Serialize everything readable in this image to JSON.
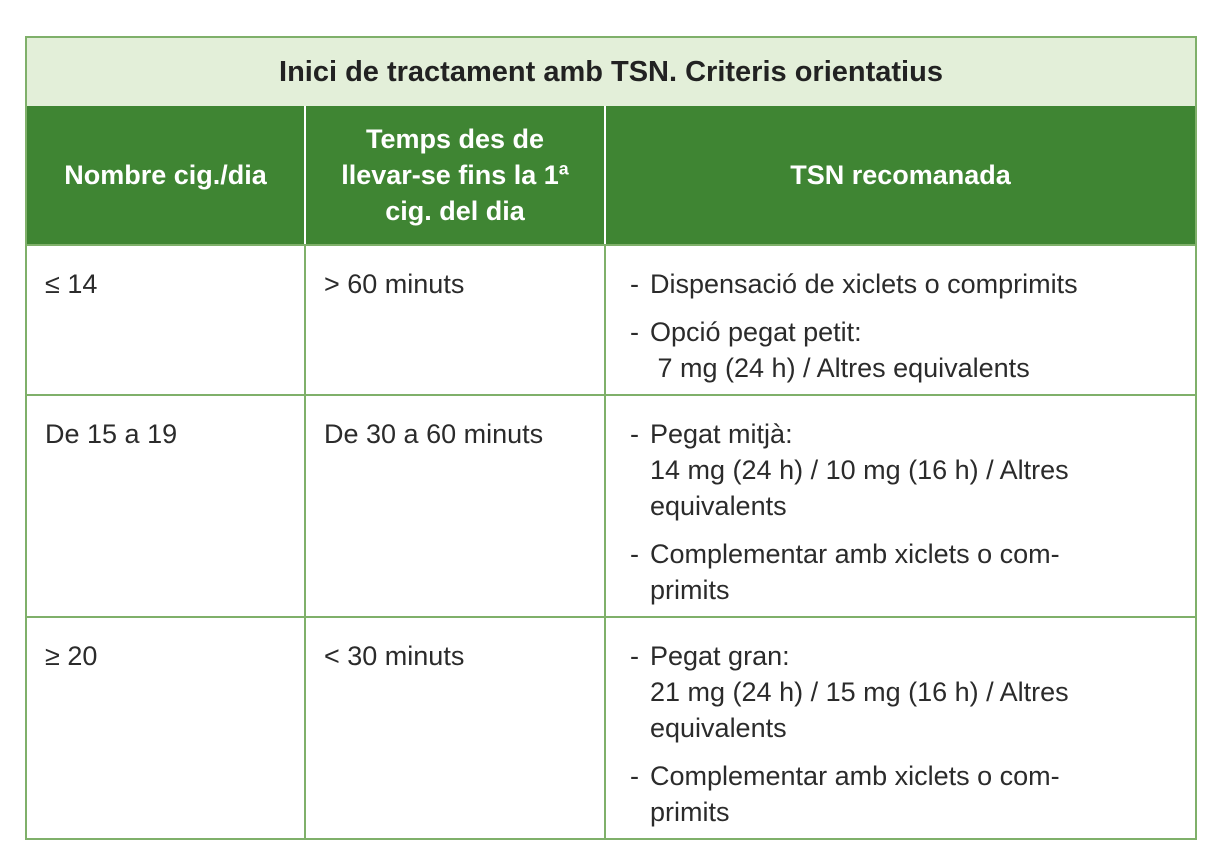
{
  "title": "Inici de tractament amb TSN. Criteris orientatius",
  "headers": {
    "col1": "Nombre cig./dia",
    "col2_lines": [
      "Temps des de",
      "llevar-se fins la 1ª",
      "cig. del dia"
    ],
    "col3": "TSN recomanada"
  },
  "rows": [
    {
      "cig": "≤ 14",
      "time": "> 60 minuts",
      "recommendations": [
        {
          "dash": "-",
          "lines": [
            "Dispensació de xiclets o comprimits"
          ]
        },
        {
          "dash": "-",
          "lines": [
            "Opció pegat petit:",
            " 7 mg (24 h) / Altres equivalents"
          ]
        }
      ]
    },
    {
      "cig": "De 15 a 19",
      "time": "De 30 a 60 minuts",
      "recommendations": [
        {
          "dash": "-",
          "lines": [
            "Pegat mitjà:",
            "14 mg (24 h) / 10 mg (16 h) / Altres",
            "equivalents"
          ]
        },
        {
          "dash": "-",
          "lines": [
            "Complementar amb xiclets o com-",
            "primits"
          ]
        }
      ]
    },
    {
      "cig": "≥ 20",
      "time": "< 30 minuts",
      "recommendations": [
        {
          "dash": "-",
          "lines": [
            "Pegat gran:",
            "21 mg (24 h) / 15 mg (16 h) / Altres",
            "equivalents"
          ]
        },
        {
          "dash": "-",
          "lines": [
            "Complementar amb xiclets o com-",
            "primits"
          ]
        }
      ]
    }
  ]
}
